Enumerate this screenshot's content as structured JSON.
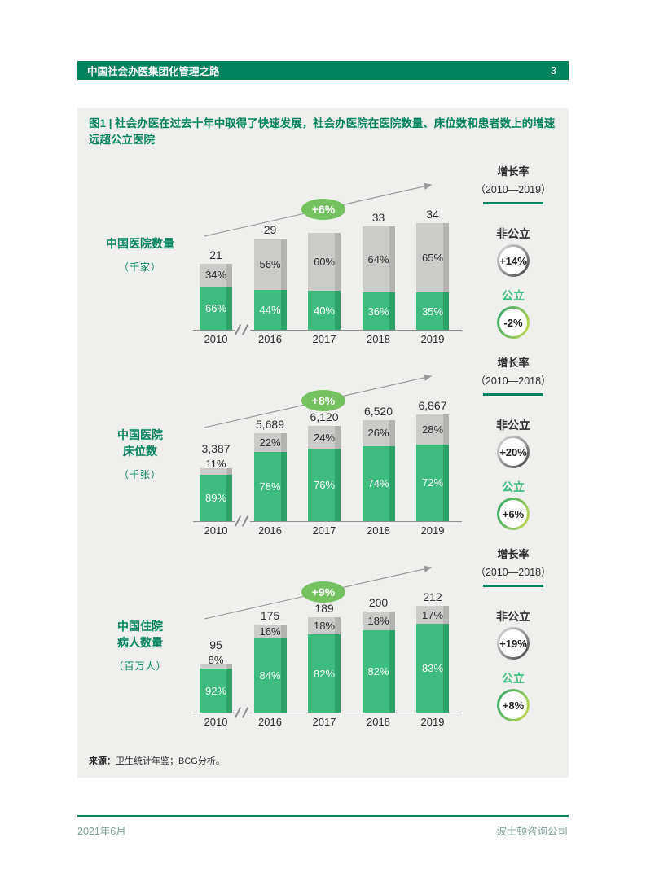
{
  "header": {
    "title": "中国社会办医集团化管理之路",
    "page_number": "3"
  },
  "figure": {
    "title": "图1 | 社会办医在过去十年中取得了快速发展，社会办医院在医院数量、床位数和患者数上的增速远超公立医院",
    "source_label": "来源：",
    "source_text": "卫生统计年鉴；BCG分析。"
  },
  "colors": {
    "brand_green": "#00835C",
    "bar_public_green": "#3DBC7D",
    "bar_public_green_edge": "#2EA169",
    "bar_nonpublic_gray": "#CBCBC9",
    "bar_nonpublic_gray_edge": "#B3B3B1",
    "badge_green": "#74C25F",
    "arrow_gray": "#9A9A9A",
    "panel_bg": "#EFEFED",
    "footer_text": "#7E9D96",
    "public_label_green": "#3DBC7D",
    "text_dark": "#2D2D2D"
  },
  "chart_data": [
    {
      "type": "bar",
      "stacked": true,
      "title": "中国医院数量",
      "unit": "（千家）",
      "categories": [
        "2010",
        "2016",
        "2017",
        "2018",
        "2019"
      ],
      "axis_break_after_first": true,
      "totals_label": [
        "21",
        "29",
        "",
        "33",
        "34"
      ],
      "totals_value": [
        21,
        29,
        31,
        33,
        34
      ],
      "series": [
        {
          "name": "公立",
          "color_key": "green",
          "values_pct": [
            66,
            44,
            40,
            36,
            35
          ]
        },
        {
          "name": "非公立",
          "color_key": "gray",
          "values_pct": [
            34,
            56,
            60,
            64,
            65
          ]
        }
      ],
      "trend_badge": "+6%",
      "legend": {
        "title": "增长率",
        "period": "（2010—2019）",
        "items": [
          {
            "label": "非公立",
            "value": "+14%",
            "ring": "gray"
          },
          {
            "label": "公立",
            "value": "-2%",
            "ring": "green"
          }
        ]
      }
    },
    {
      "type": "bar",
      "stacked": true,
      "title": "中国医院\n床位数",
      "unit": "（千张）",
      "categories": [
        "2010",
        "2016",
        "2017",
        "2018",
        "2019"
      ],
      "axis_break_after_first": true,
      "totals_label": [
        "3,387",
        "5,689",
        "6,120",
        "6,520",
        "6,867"
      ],
      "totals_value": [
        3387,
        5689,
        6120,
        6520,
        6867
      ],
      "series": [
        {
          "name": "公立",
          "color_key": "green",
          "values_pct": [
            89,
            78,
            76,
            74,
            72
          ]
        },
        {
          "name": "非公立",
          "color_key": "gray",
          "values_pct": [
            11,
            22,
            24,
            26,
            28
          ]
        }
      ],
      "trend_badge": "+8%",
      "legend": {
        "title": "增长率",
        "period": "（2010—2018）",
        "items": [
          {
            "label": "非公立",
            "value": "+20%",
            "ring": "gray"
          },
          {
            "label": "公立",
            "value": "+6%",
            "ring": "green"
          }
        ]
      }
    },
    {
      "type": "bar",
      "stacked": true,
      "title": "中国住院\n病人数量",
      "unit": "（百万人）",
      "categories": [
        "2010",
        "2016",
        "2017",
        "2018",
        "2019"
      ],
      "axis_break_after_first": true,
      "totals_label": [
        "95",
        "175",
        "189",
        "200",
        "212"
      ],
      "totals_value": [
        95,
        175,
        189,
        200,
        212
      ],
      "series": [
        {
          "name": "公立",
          "color_key": "green",
          "values_pct": [
            92,
            84,
            82,
            82,
            83
          ]
        },
        {
          "name": "非公立",
          "color_key": "gray",
          "values_pct": [
            8,
            16,
            18,
            18,
            17
          ]
        }
      ],
      "trend_badge": "+9%",
      "legend": {
        "title": "增长率",
        "period": "（2010—2018）",
        "items": [
          {
            "label": "非公立",
            "value": "+19%",
            "ring": "gray"
          },
          {
            "label": "公立",
            "value": "+8%",
            "ring": "green"
          }
        ]
      }
    }
  ],
  "footer": {
    "date": "2021年6月",
    "company": "波士顿咨询公司"
  }
}
